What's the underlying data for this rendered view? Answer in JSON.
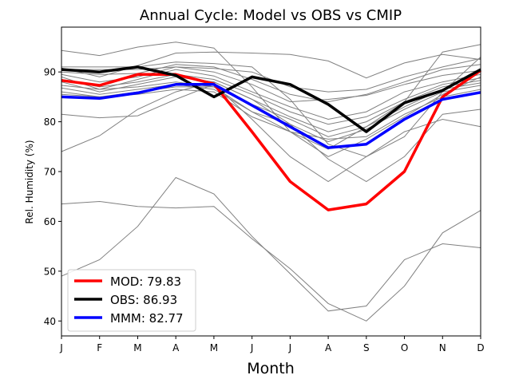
{
  "chart_data": {
    "type": "line",
    "title": "Annual Cycle: Model vs OBS vs CMIP",
    "xlabel": "Month",
    "ylabel": "Rel. Humidity (%)",
    "categories": [
      "J",
      "F",
      "M",
      "A",
      "M",
      "J",
      "J",
      "A",
      "S",
      "O",
      "N",
      "D"
    ],
    "xlim": [
      0,
      11
    ],
    "ylim": [
      37,
      99
    ],
    "yticks": [
      40,
      50,
      60,
      70,
      80,
      90
    ],
    "grid": false,
    "legend_position": "lower-left",
    "series": [
      {
        "name": "MOD",
        "label": "MOD: 79.83",
        "color": "#ff0000",
        "width": 3.5,
        "values": [
          88.3,
          87.3,
          89.5,
          89.5,
          87.6,
          78.0,
          68.0,
          62.3,
          63.5,
          70.0,
          85.0,
          90.3
        ]
      },
      {
        "name": "OBS",
        "label": "OBS: 86.93",
        "color": "#000000",
        "width": 3.5,
        "values": [
          90.5,
          90.0,
          91.0,
          89.3,
          85.0,
          89.0,
          87.5,
          83.5,
          78.0,
          83.8,
          86.3,
          90.5
        ]
      },
      {
        "name": "MMM",
        "label": "MMM: 82.77",
        "color": "#0000ff",
        "width": 3.5,
        "values": [
          85.0,
          84.7,
          85.8,
          87.5,
          87.5,
          83.3,
          79.0,
          74.8,
          75.5,
          80.5,
          84.5,
          85.9
        ]
      }
    ],
    "cmip_color": "#808080",
    "cmip_models": [
      [
        94.3,
        93.3,
        95.0,
        96.0,
        94.8,
        87.0,
        78.0,
        74.5,
        79.0,
        84.0,
        94.0,
        95.5
      ],
      [
        91.0,
        91.0,
        91.0,
        92.0,
        91.7,
        91.0,
        84.5,
        75.5,
        73.0,
        77.0,
        86.0,
        93.0
      ],
      [
        90.8,
        89.0,
        91.3,
        93.8,
        94.0,
        93.8,
        93.5,
        92.2,
        88.8,
        91.8,
        93.5,
        92.5
      ],
      [
        90.5,
        90.5,
        90.5,
        91.0,
        90.7,
        90.0,
        87.0,
        86.0,
        86.5,
        89.0,
        91.0,
        92.7
      ],
      [
        90.0,
        89.5,
        89.7,
        91.5,
        91.0,
        88.5,
        85.5,
        84.0,
        85.5,
        88.0,
        90.5,
        91.5
      ],
      [
        89.5,
        88.0,
        89.0,
        91.0,
        90.0,
        87.5,
        84.0,
        84.5,
        85.3,
        87.5,
        89.3,
        90.3
      ],
      [
        89.0,
        86.5,
        88.5,
        90.5,
        89.2,
        86.0,
        83.0,
        80.5,
        82.0,
        86.0,
        88.0,
        89.5
      ],
      [
        88.5,
        87.0,
        88.0,
        89.5,
        88.5,
        85.5,
        82.0,
        79.5,
        81.0,
        84.5,
        87.5,
        88.8
      ],
      [
        88.0,
        86.0,
        87.5,
        89.0,
        88.0,
        84.5,
        81.0,
        78.0,
        80.0,
        84.0,
        87.0,
        88.3
      ],
      [
        87.3,
        86.5,
        87.0,
        88.0,
        87.0,
        83.5,
        80.5,
        77.0,
        79.0,
        83.0,
        86.5,
        87.8
      ],
      [
        86.8,
        85.5,
        86.5,
        87.5,
        86.5,
        82.0,
        79.5,
        76.0,
        78.5,
        82.5,
        86.0,
        87.3
      ],
      [
        86.0,
        85.0,
        86.0,
        87.0,
        87.0,
        82.0,
        78.0,
        73.0,
        76.5,
        81.0,
        85.5,
        89.0
      ],
      [
        85.5,
        85.0,
        85.5,
        86.5,
        86.0,
        81.0,
        78.0,
        76.5,
        77.0,
        81.5,
        85.0,
        86.5
      ],
      [
        81.5,
        80.8,
        81.2,
        84.5,
        87.5,
        80.5,
        73.0,
        68.0,
        73.0,
        78.0,
        80.5,
        79.0
      ],
      [
        74.0,
        77.2,
        82.5,
        86.0,
        88.0,
        84.5,
        79.5,
        72.5,
        68.0,
        73.0,
        81.5,
        82.5
      ],
      [
        63.5,
        64.0,
        63.0,
        62.7,
        63.0,
        56.5,
        50.5,
        43.5,
        40.0,
        47.0,
        57.7,
        62.2
      ],
      [
        49.0,
        52.3,
        59.0,
        68.8,
        65.5,
        57.0,
        49.5,
        42.0,
        43.0,
        52.3,
        55.5,
        54.7
      ]
    ],
    "legend": [
      {
        "label": "MOD: 79.83",
        "color": "#ff0000"
      },
      {
        "label": "OBS: 86.93",
        "color": "#000000"
      },
      {
        "label": "MMM: 82.77",
        "color": "#0000ff"
      }
    ]
  }
}
